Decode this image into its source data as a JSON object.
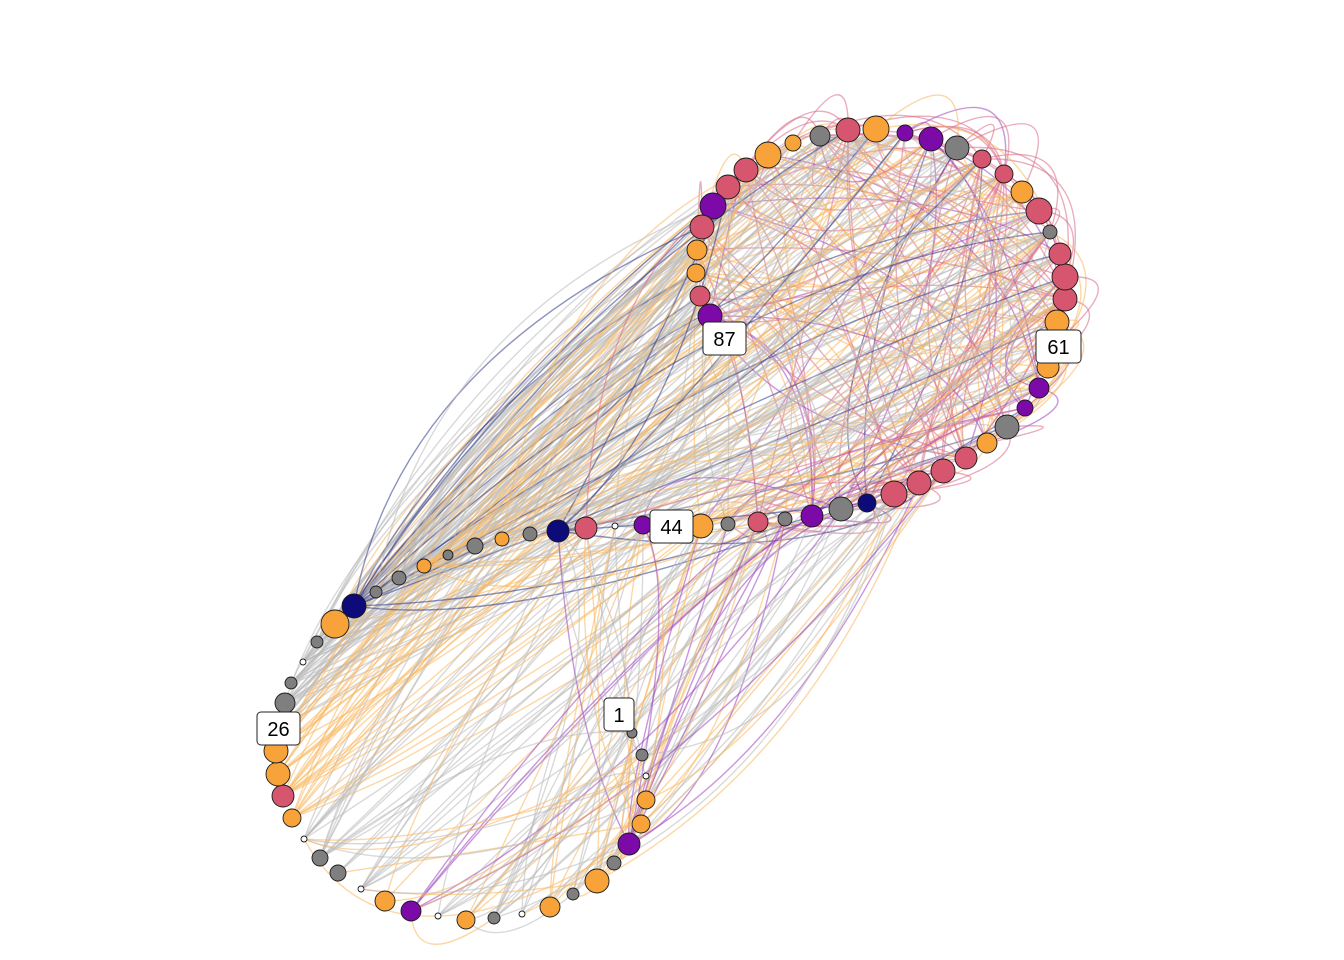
{
  "palette": {
    "orange": "#F7A33A",
    "pink": "#D5566E",
    "purple": "#7C0AA8",
    "navy": "#0D0A7A",
    "gray": "#7F7F7F",
    "white": "#FFFFFF"
  },
  "edge_palette": {
    "orange": "#F9B65C",
    "pink": "#D96A86",
    "purple": "#9B3FC0",
    "navy": "#2E3A8C",
    "gray": "#B9B9B9"
  },
  "labels": [
    {
      "id": "label-1",
      "text": "1"
    },
    {
      "id": "label-26",
      "text": "26"
    },
    {
      "id": "label-44",
      "text": "44"
    },
    {
      "id": "label-61",
      "text": "61"
    },
    {
      "id": "label-87",
      "text": "87"
    }
  ]
}
